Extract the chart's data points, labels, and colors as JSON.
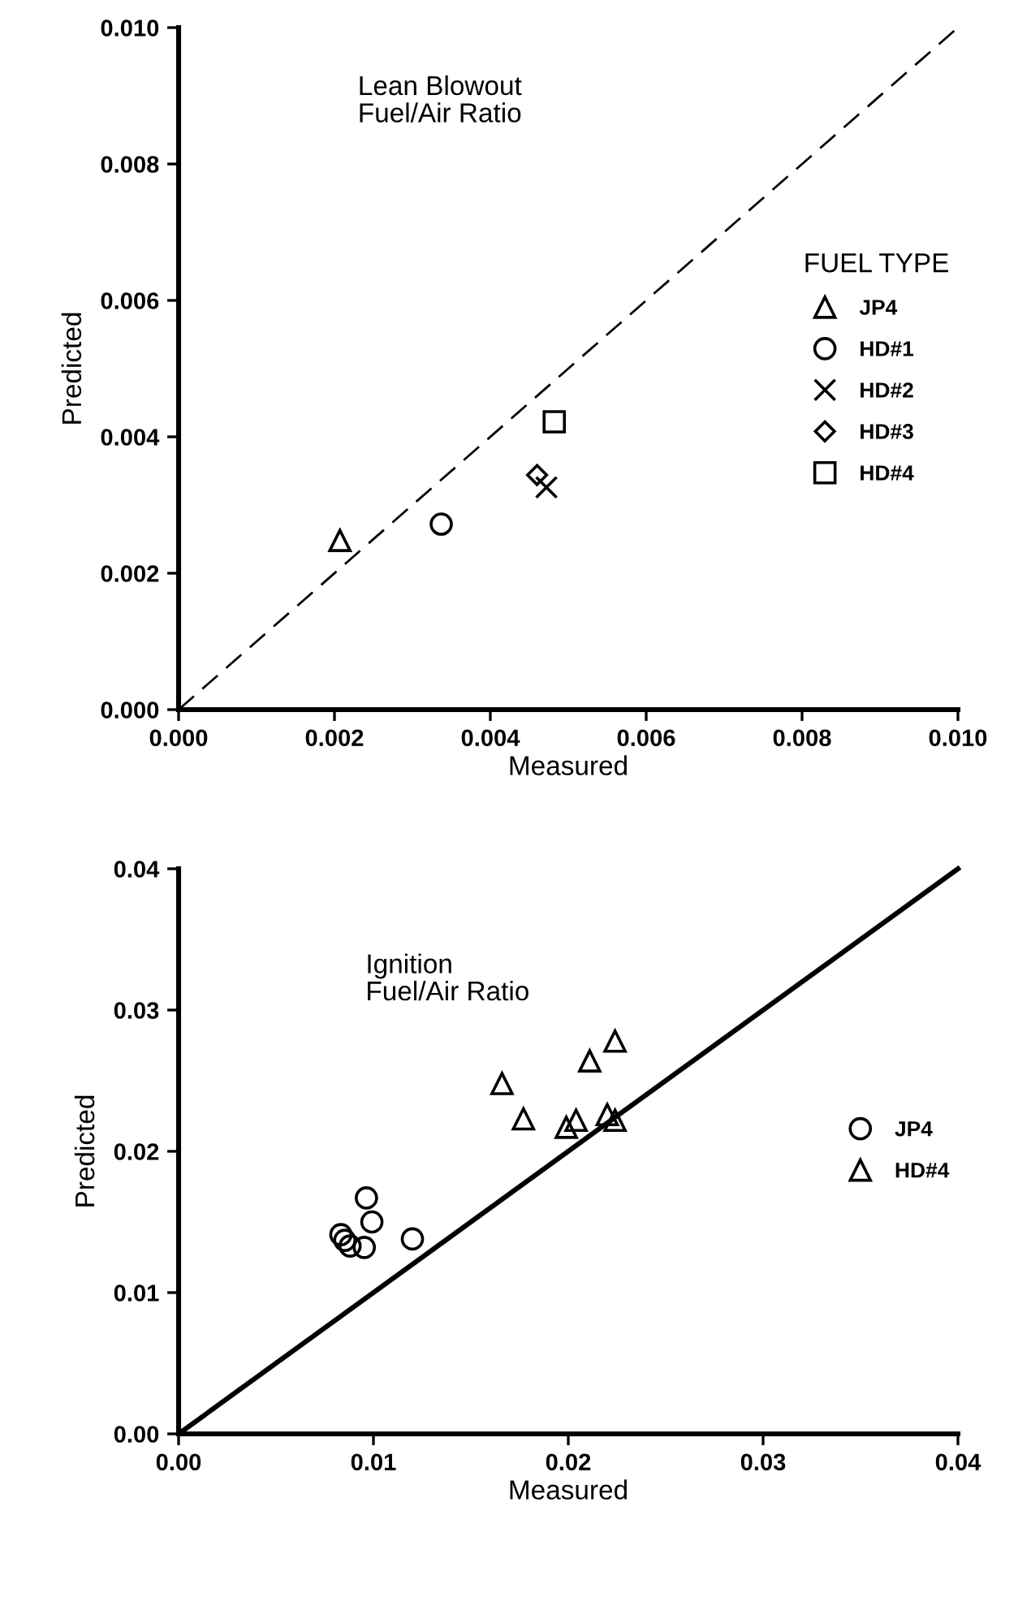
{
  "chart_data": [
    {
      "type": "scatter",
      "xlabel": "Measured",
      "ylabel": "Predicted",
      "legend_title": "FUEL TYPE",
      "legend": "center right",
      "annotations": [
        "Lean Blowout\nFuel/Air Ratio"
      ],
      "xlim": [
        0,
        0.01
      ],
      "ylim": [
        0,
        0.01
      ],
      "xticks": [
        {
          "value": 0,
          "label": "0.000"
        },
        {
          "value": 0.002,
          "label": "0.002"
        },
        {
          "value": 0.004,
          "label": "0.004"
        },
        {
          "value": 0.006,
          "label": "0.006"
        },
        {
          "value": 0.008,
          "label": "0.008"
        },
        {
          "value": 0.01,
          "label": "0.010"
        }
      ],
      "yticks": [
        {
          "value": 0,
          "label": "0.000"
        },
        {
          "value": 0.002,
          "label": "0.002"
        },
        {
          "value": 0.004,
          "label": "0.004"
        },
        {
          "value": 0.006,
          "label": "0.006"
        },
        {
          "value": 0.008,
          "label": "0.008"
        },
        {
          "value": 0.01,
          "label": "0.010"
        }
      ],
      "series": [
        {
          "type": "line",
          "color": "#000000",
          "line_style": "dashed",
          "marker": "none",
          "x": [
            0,
            0.01
          ],
          "values": [
            0,
            0.01
          ]
        },
        {
          "name": "JP4",
          "color": "#000000",
          "marker": "triangle",
          "x": [
            0.00207
          ],
          "values": [
            0.00248
          ]
        },
        {
          "name": "HD#1",
          "color": "#000000",
          "marker": "circle",
          "x": [
            0.00337
          ],
          "values": [
            0.00272
          ]
        },
        {
          "name": "HD#2",
          "color": "#000000",
          "marker": "cross",
          "x": [
            0.00472
          ],
          "values": [
            0.00326
          ]
        },
        {
          "name": "HD#3",
          "color": "#000000",
          "marker": "diamond",
          "x": [
            0.0046
          ],
          "values": [
            0.00344
          ]
        },
        {
          "name": "HD#4",
          "color": "#000000",
          "marker": "square",
          "x": [
            0.00482
          ],
          "values": [
            0.00422
          ]
        }
      ]
    },
    {
      "type": "scatter",
      "xlabel": "Measured",
      "ylabel": "Predicted",
      "legend": "right",
      "annotations": [
        "Ignition\nFuel/Air Ratio"
      ],
      "xlim": [
        0,
        0.04
      ],
      "ylim": [
        0,
        0.04
      ],
      "xticks": [
        {
          "value": 0,
          "label": "0.00"
        },
        {
          "value": 0.01,
          "label": "0.01"
        },
        {
          "value": 0.02,
          "label": "0.02"
        },
        {
          "value": 0.03,
          "label": "0.03"
        },
        {
          "value": 0.04,
          "label": "0.04"
        }
      ],
      "yticks": [
        {
          "value": 0,
          "label": "0.00"
        },
        {
          "value": 0.01,
          "label": "0.01"
        },
        {
          "value": 0.02,
          "label": "0.02"
        },
        {
          "value": 0.03,
          "label": "0.03"
        },
        {
          "value": 0.04,
          "label": "0.04"
        }
      ],
      "series": [
        {
          "type": "line",
          "color": "#000000",
          "line_style": "solid",
          "marker": "none",
          "x": [
            0,
            0.04
          ],
          "values": [
            0,
            0.04
          ]
        },
        {
          "name": "JP4",
          "color": "#000000",
          "marker": "circle",
          "x": [
            0.00964,
            0.00992,
            0.012,
            0.00833,
            0.00853,
            0.0088,
            0.00953
          ],
          "values": [
            0.0167,
            0.015,
            0.0138,
            0.0141,
            0.0137,
            0.0133,
            0.0132
          ]
        },
        {
          "name": "HD#4",
          "color": "#000000",
          "marker": "triangle",
          "x": [
            0.0166,
            0.0177,
            0.0211,
            0.0224,
            0.0199,
            0.0204,
            0.022,
            0.0224
          ],
          "values": [
            0.0248,
            0.0223,
            0.0264,
            0.0278,
            0.0217,
            0.0222,
            0.0226,
            0.0222
          ]
        }
      ]
    }
  ]
}
